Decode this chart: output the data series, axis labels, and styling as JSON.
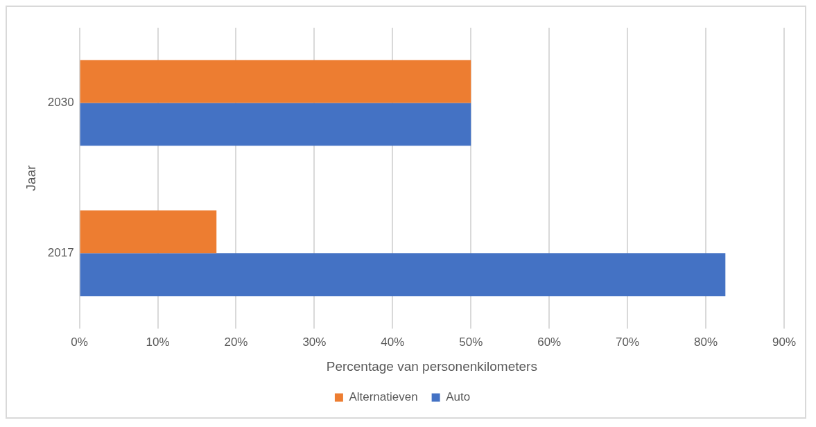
{
  "chart_data": {
    "type": "bar",
    "orientation": "horizontal",
    "categories": [
      "2030",
      "2017"
    ],
    "series": [
      {
        "name": "Alternatieven",
        "color": "#ed7d31",
        "values": [
          50,
          17.5
        ]
      },
      {
        "name": "Auto",
        "color": "#4472c4",
        "values": [
          50,
          82.5
        ]
      }
    ],
    "xlabel": "Percentage van personenkilometers",
    "ylabel": "Jaar",
    "xlim": [
      0,
      90
    ],
    "xticks": [
      {
        "value": 0,
        "label": "0%"
      },
      {
        "value": 10,
        "label": "10%"
      },
      {
        "value": 20,
        "label": "20%"
      },
      {
        "value": 30,
        "label": "30%"
      },
      {
        "value": 40,
        "label": "40%"
      },
      {
        "value": 50,
        "label": "50%"
      },
      {
        "value": 60,
        "label": "60%"
      },
      {
        "value": 70,
        "label": "70%"
      },
      {
        "value": 80,
        "label": "80%"
      },
      {
        "value": 90,
        "label": "90%"
      }
    ],
    "grid": "x",
    "legend": "bottom"
  }
}
